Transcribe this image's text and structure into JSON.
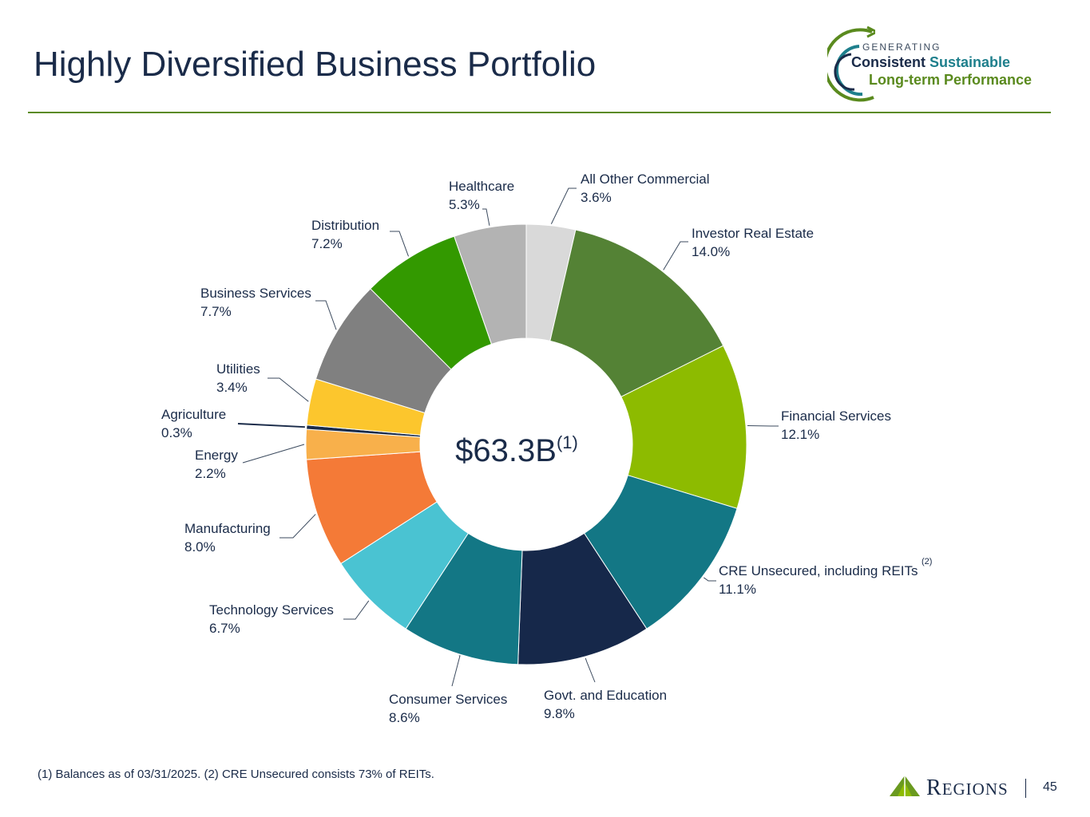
{
  "title": "Highly Diversified Business Portfolio",
  "logo": {
    "generating": "GENERATING",
    "consistent": "Consistent",
    "sustainable": "Sustainable",
    "long_term": "Long-term Performance"
  },
  "chart_data": {
    "type": "donut",
    "center_label": "$63.3B",
    "center_superscript": "(1)",
    "slices": [
      {
        "label": "All Other Commercial",
        "value": 3.6,
        "display": "3.6%",
        "color": "#d9d9d9"
      },
      {
        "label": "Investor Real Estate",
        "value": 14.0,
        "display": "14.0%",
        "color": "#548235"
      },
      {
        "label": "Financial Services",
        "value": 12.1,
        "display": "12.1%",
        "color": "#8dbb00"
      },
      {
        "label": "CRE Unsecured, including REITs",
        "value": 11.1,
        "display": "11.1%",
        "color": "#137785",
        "superscript": "(2)"
      },
      {
        "label": "Govt. and Education",
        "value": 9.8,
        "display": "9.8%",
        "color": "#16284a"
      },
      {
        "label": "Consumer Services",
        "value": 8.6,
        "display": "8.6%",
        "color": "#137785"
      },
      {
        "label": "Technology Services",
        "value": 6.7,
        "display": "6.7%",
        "color": "#4ac3d2"
      },
      {
        "label": "Manufacturing",
        "value": 8.0,
        "display": "8.0%",
        "color": "#f47a37"
      },
      {
        "label": "Energy",
        "value": 2.2,
        "display": "2.2%",
        "color": "#f8b04b"
      },
      {
        "label": "Agriculture",
        "value": 0.3,
        "display": "0.3%",
        "color": "#1a2b49"
      },
      {
        "label": "Utilities",
        "value": 3.4,
        "display": "3.4%",
        "color": "#fcc62d"
      },
      {
        "label": "Business Services",
        "value": 7.7,
        "display": "7.7%",
        "color": "#808080"
      },
      {
        "label": "Distribution",
        "value": 7.2,
        "display": "7.2%",
        "color": "#339900"
      },
      {
        "label": "Healthcare",
        "value": 5.3,
        "display": "5.3%",
        "color": "#b3b3b3"
      }
    ]
  },
  "footnote": "(1) Balances as of 03/31/2025. (2) CRE Unsecured consists 73% of REITs.",
  "brand": "Regions",
  "page_number": "45"
}
